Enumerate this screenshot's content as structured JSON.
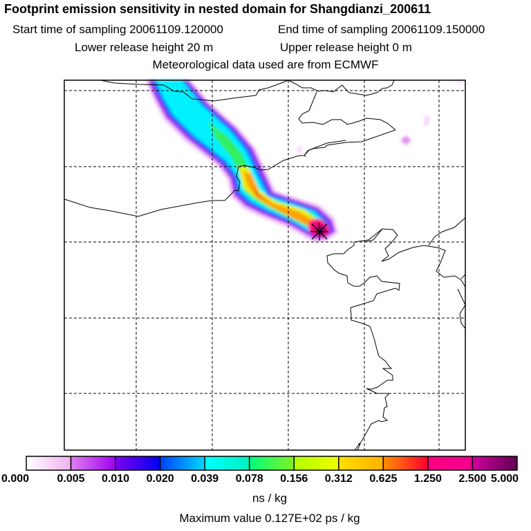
{
  "header": {
    "title": "Footprint emission sensitivity in nested domain for Shangdianzi_200611",
    "start_time": "Start time of sampling 20061109.120000",
    "end_time": "End time of sampling 20061109.150000",
    "lower_height": "Lower release height   20 m",
    "upper_height": "Upper release height    0 m",
    "met_data": "Meteorological data used are from ECMWF"
  },
  "colorbar": {
    "labels": [
      "0.000",
      "0.005",
      "0.010",
      "0.020",
      "0.039",
      "0.078",
      "0.156",
      "0.312",
      "0.625",
      "1.250",
      "2.500",
      "5.000"
    ],
    "colors": [
      [
        "#ffffff",
        "#f0b0f0"
      ],
      [
        "#e080f0",
        "#a000f0"
      ],
      [
        "#8000f0",
        "#0000f0"
      ],
      [
        "#0040ff",
        "#00d8ff"
      ],
      [
        "#00ffff",
        "#00f0c0"
      ],
      [
        "#00ff80",
        "#80f020"
      ],
      [
        "#b0ff00",
        "#f0ff00"
      ],
      [
        "#ffe000",
        "#ffb000"
      ],
      [
        "#ff9000",
        "#ff0030"
      ],
      [
        "#ff0080",
        "#f00090"
      ],
      [
        "#d000a0",
        "#600050"
      ]
    ],
    "unit": "ns / kg"
  },
  "footer": {
    "max_value": "Maximum value  0.127E+02 ps / kg"
  }
}
